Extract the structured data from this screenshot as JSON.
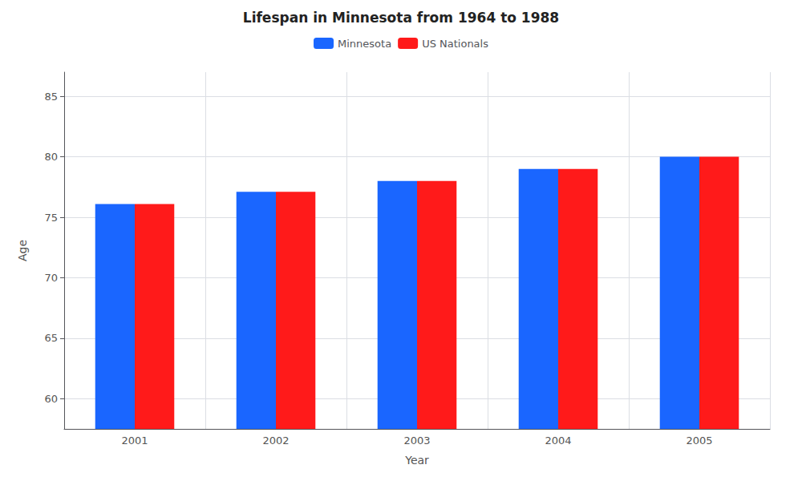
{
  "chart_data": {
    "type": "bar",
    "title": "Lifespan in Minnesota from 1964 to 1988",
    "xlabel": "Year",
    "ylabel": "Age",
    "categories": [
      "2001",
      "2002",
      "2003",
      "2004",
      "2005"
    ],
    "series": [
      {
        "name": "Minnesota",
        "color": "#1a66ff",
        "values": [
          76.1,
          77.1,
          78.0,
          79.0,
          80.0
        ]
      },
      {
        "name": "US Nationals",
        "color": "#ff1a1a",
        "values": [
          76.1,
          77.1,
          78.0,
          79.0,
          80.0
        ]
      }
    ],
    "ylim": [
      57.5,
      87
    ],
    "yticks": [
      60,
      65,
      70,
      75,
      80,
      85
    ],
    "grid": true,
    "legend": "top"
  }
}
